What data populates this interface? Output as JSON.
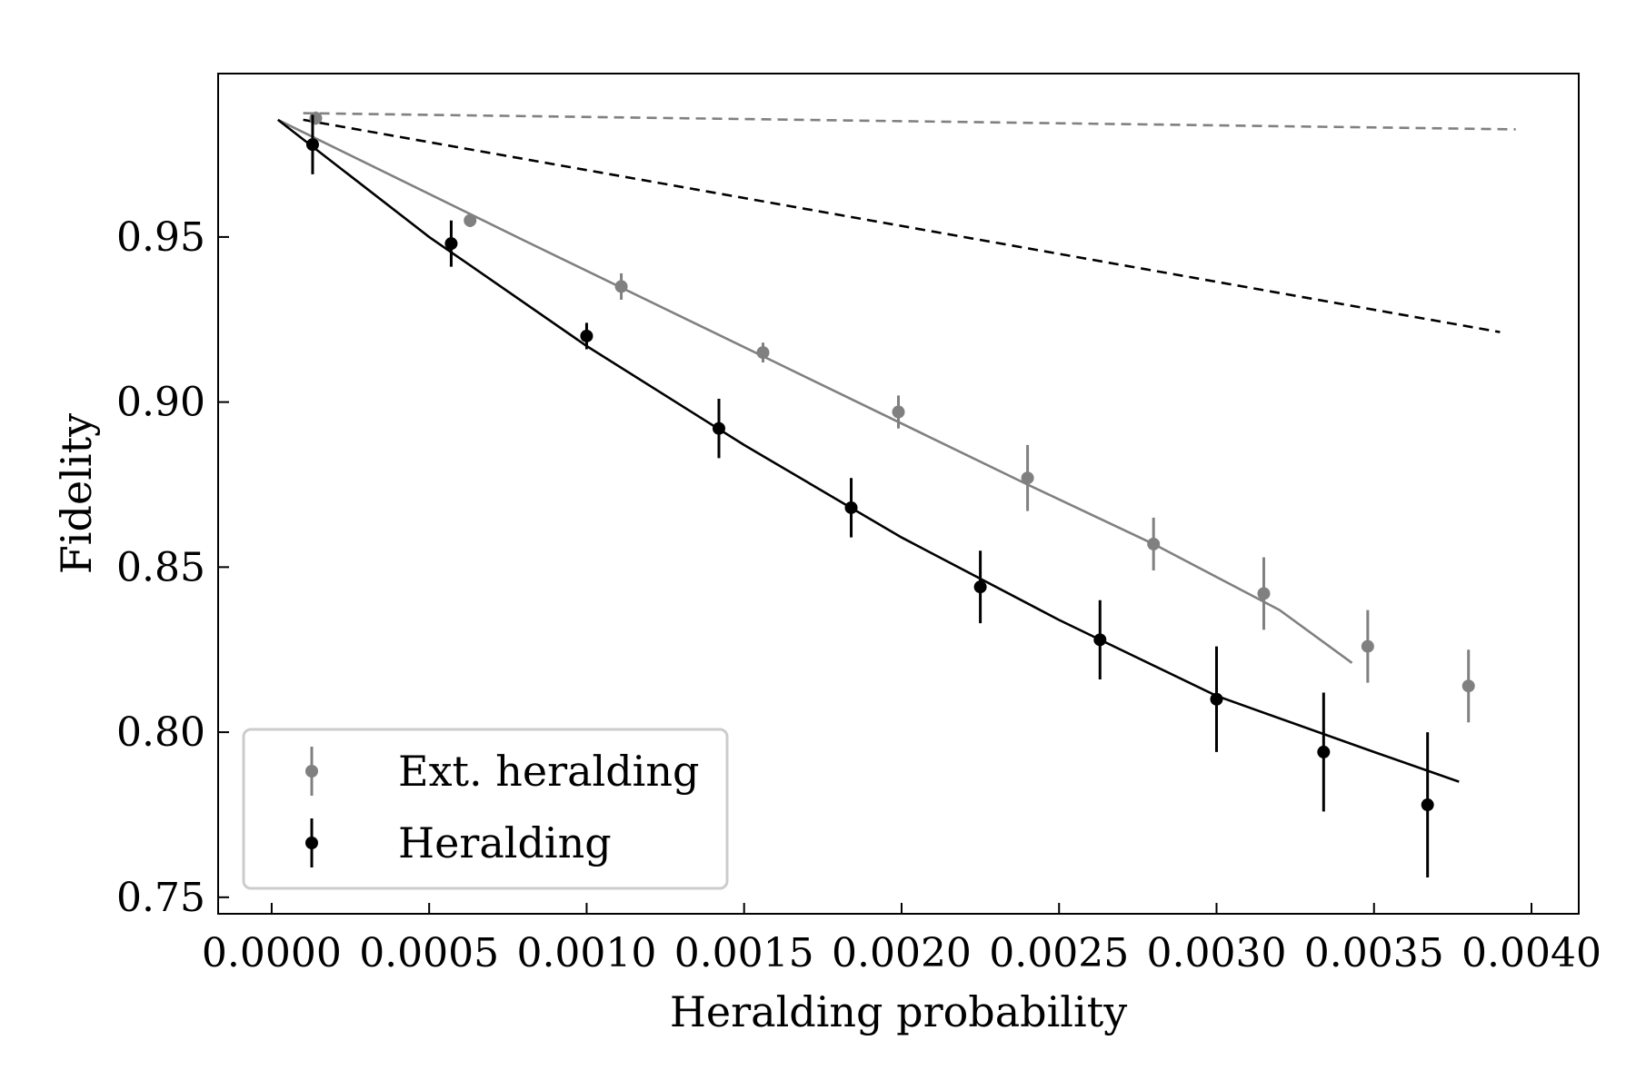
{
  "chart_data": {
    "type": "scatter",
    "title": "",
    "xlabel": "Heralding probability",
    "ylabel": "Fidelity",
    "xlim": [
      -0.00017,
      0.00415
    ],
    "ylim": [
      0.745,
      0.9995
    ],
    "xticks": [
      0.0,
      0.0005,
      0.001,
      0.0015,
      0.002,
      0.0025,
      0.003,
      0.0035,
      0.004
    ],
    "xtick_labels": [
      "0.0000",
      "0.0005",
      "0.0010",
      "0.0015",
      "0.0020",
      "0.0025",
      "0.0030",
      "0.0035",
      "0.0040"
    ],
    "yticks": [
      0.75,
      0.8,
      0.85,
      0.9,
      0.95
    ],
    "ytick_labels": [
      "0.75",
      "0.80",
      "0.85",
      "0.90",
      "0.95"
    ],
    "grid": false,
    "legend_position": "lower-left",
    "series": [
      {
        "name": "Ext. heralding",
        "color": "#808080",
        "x": [
          0.00014,
          0.00063,
          0.00111,
          0.00156,
          0.00199,
          0.0024,
          0.0028,
          0.00315,
          0.00348,
          0.0038
        ],
        "y": [
          0.986,
          0.955,
          0.935,
          0.915,
          0.897,
          0.877,
          0.857,
          0.842,
          0.826,
          0.814
        ],
        "yerr": [
          0.002,
          0.002,
          0.004,
          0.003,
          0.005,
          0.01,
          0.008,
          0.011,
          0.011,
          0.011
        ]
      },
      {
        "name": "Heralding",
        "color": "#000000",
        "x": [
          0.00013,
          0.00057,
          0.001,
          0.00142,
          0.00184,
          0.00225,
          0.00263,
          0.003,
          0.00334,
          0.00367
        ],
        "y": [
          0.978,
          0.948,
          0.92,
          0.892,
          0.868,
          0.844,
          0.828,
          0.81,
          0.794,
          0.778
        ],
        "yerr": [
          0.009,
          0.007,
          0.004,
          0.009,
          0.009,
          0.011,
          0.012,
          0.016,
          0.018,
          0.022
        ]
      }
    ],
    "curves": [
      {
        "series": "Ext. heralding fit",
        "color": "#808080",
        "style": "solid",
        "x": [
          2e-05,
          0.0008,
          0.0016,
          0.0024,
          0.0028,
          0.0032,
          0.00343
        ],
        "y": [
          0.9855,
          0.949,
          0.912,
          0.875,
          0.857,
          0.837,
          0.821
        ]
      },
      {
        "series": "Heralding fit",
        "color": "#000000",
        "style": "solid",
        "x": [
          2e-05,
          0.0005,
          0.001,
          0.0015,
          0.002,
          0.0025,
          0.003,
          0.0035,
          0.00377
        ],
        "y": [
          0.9855,
          0.95,
          0.917,
          0.887,
          0.859,
          0.834,
          0.811,
          0.794,
          0.785
        ]
      },
      {
        "series": "Ext. heralding bound",
        "color": "#808080",
        "style": "dashed",
        "x": [
          0.0001,
          0.00395
        ],
        "y": [
          0.9875,
          0.9826
        ]
      },
      {
        "series": "Heralding bound",
        "color": "#000000",
        "style": "dashed",
        "x": [
          0.0001,
          0.0039
        ],
        "y": [
          0.9855,
          0.9212
        ]
      }
    ]
  }
}
